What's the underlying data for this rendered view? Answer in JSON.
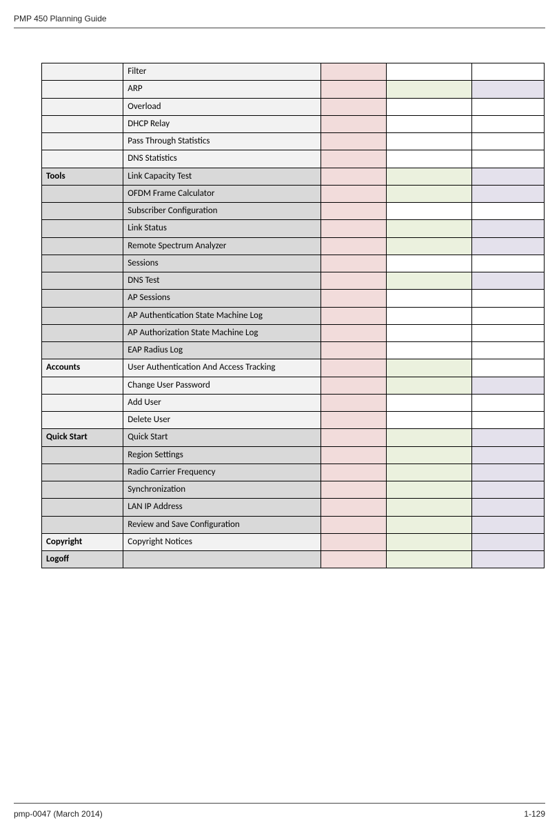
{
  "doc": {
    "header_title": "PMP 450 Planning Guide",
    "footer_left": "pmp-0047 (March 2014)",
    "footer_right": "1-129"
  },
  "colors": {
    "white": "#ffffff",
    "light": "#f2f2f2",
    "grey": "#d9d9d9",
    "pink": "#f2dcdb",
    "green": "#ebf1de",
    "purple": "#e4e1ec"
  },
  "rows": [
    {
      "section": "",
      "sec_bg": "light",
      "sec_bold": false,
      "item": "Filter",
      "item_bg": "light",
      "a": "pink",
      "b": "white",
      "c": "white"
    },
    {
      "section": "",
      "sec_bg": "light",
      "sec_bold": false,
      "item": "ARP",
      "item_bg": "light",
      "a": "pink",
      "b": "green",
      "c": "purple"
    },
    {
      "section": "",
      "sec_bg": "light",
      "sec_bold": false,
      "item": "Overload",
      "item_bg": "light",
      "a": "pink",
      "b": "white",
      "c": "white"
    },
    {
      "section": "",
      "sec_bg": "light",
      "sec_bold": false,
      "item": "DHCP Relay",
      "item_bg": "light",
      "a": "pink",
      "b": "white",
      "c": "white"
    },
    {
      "section": "",
      "sec_bg": "light",
      "sec_bold": false,
      "item": "Pass Through Statistics",
      "item_bg": "light",
      "a": "pink",
      "b": "white",
      "c": "white"
    },
    {
      "section": "",
      "sec_bg": "light",
      "sec_bold": false,
      "item": "DNS Statistics",
      "item_bg": "light",
      "a": "pink",
      "b": "white",
      "c": "white"
    },
    {
      "section": "Tools",
      "sec_bg": "grey",
      "sec_bold": true,
      "item": "Link Capacity Test",
      "item_bg": "grey",
      "a": "pink",
      "b": "green",
      "c": "purple"
    },
    {
      "section": "",
      "sec_bg": "grey",
      "sec_bold": false,
      "item": "OFDM Frame Calculator",
      "item_bg": "grey",
      "a": "pink",
      "b": "green",
      "c": "purple"
    },
    {
      "section": "",
      "sec_bg": "grey",
      "sec_bold": false,
      "item": "Subscriber Configuration",
      "item_bg": "grey",
      "a": "pink",
      "b": "white",
      "c": "white"
    },
    {
      "section": "",
      "sec_bg": "grey",
      "sec_bold": false,
      "item": "Link Status",
      "item_bg": "grey",
      "a": "pink",
      "b": "green",
      "c": "purple"
    },
    {
      "section": "",
      "sec_bg": "grey",
      "sec_bold": false,
      "item": "Remote Spectrum Analyzer",
      "item_bg": "grey",
      "a": "pink",
      "b": "green",
      "c": "purple"
    },
    {
      "section": "",
      "sec_bg": "grey",
      "sec_bold": false,
      "item": "Sessions",
      "item_bg": "grey",
      "a": "pink",
      "b": "white",
      "c": "white"
    },
    {
      "section": "",
      "sec_bg": "grey",
      "sec_bold": false,
      "item": "DNS Test",
      "item_bg": "grey",
      "a": "pink",
      "b": "green",
      "c": "purple"
    },
    {
      "section": "",
      "sec_bg": "grey",
      "sec_bold": false,
      "item": "AP Sessions",
      "item_bg": "grey",
      "a": "pink",
      "b": "white",
      "c": "white"
    },
    {
      "section": "",
      "sec_bg": "grey",
      "sec_bold": false,
      "item": "AP Authentication State Machine Log",
      "item_bg": "grey",
      "a": "pink",
      "b": "white",
      "c": "white"
    },
    {
      "section": "",
      "sec_bg": "grey",
      "sec_bold": false,
      "item": "AP Authorization State Machine Log",
      "item_bg": "grey",
      "a": "pink",
      "b": "white",
      "c": "white"
    },
    {
      "section": "",
      "sec_bg": "grey",
      "sec_bold": false,
      "item": "EAP Radius Log",
      "item_bg": "grey",
      "a": "pink",
      "b": "white",
      "c": "white"
    },
    {
      "section": "Accounts",
      "sec_bg": "light",
      "sec_bold": true,
      "item": "User Authentication And Access Tracking",
      "item_bg": "light",
      "a": "pink",
      "b": "green",
      "c": "white"
    },
    {
      "section": "",
      "sec_bg": "light",
      "sec_bold": false,
      "item": "Change User Password",
      "item_bg": "light",
      "a": "pink",
      "b": "green",
      "c": "purple"
    },
    {
      "section": "",
      "sec_bg": "light",
      "sec_bold": false,
      "item": "Add User",
      "item_bg": "light",
      "a": "pink",
      "b": "white",
      "c": "white"
    },
    {
      "section": "",
      "sec_bg": "light",
      "sec_bold": false,
      "item": "Delete User",
      "item_bg": "light",
      "a": "pink",
      "b": "white",
      "c": "white"
    },
    {
      "section": "Quick Start",
      "sec_bg": "grey",
      "sec_bold": true,
      "item": "Quick Start",
      "item_bg": "grey",
      "a": "pink",
      "b": "green",
      "c": "purple"
    },
    {
      "section": "",
      "sec_bg": "grey",
      "sec_bold": false,
      "item": "Region Settings",
      "item_bg": "grey",
      "a": "pink",
      "b": "green",
      "c": "purple"
    },
    {
      "section": "",
      "sec_bg": "grey",
      "sec_bold": false,
      "item": "Radio Carrier Frequency",
      "item_bg": "grey",
      "a": "pink",
      "b": "green",
      "c": "purple"
    },
    {
      "section": "",
      "sec_bg": "grey",
      "sec_bold": false,
      "item": "Synchronization",
      "item_bg": "grey",
      "a": "pink",
      "b": "green",
      "c": "purple"
    },
    {
      "section": "",
      "sec_bg": "grey",
      "sec_bold": false,
      "item": "LAN IP Address",
      "item_bg": "grey",
      "a": "pink",
      "b": "green",
      "c": "purple"
    },
    {
      "section": "",
      "sec_bg": "grey",
      "sec_bold": false,
      "item": "Review and Save Configuration",
      "item_bg": "grey",
      "a": "pink",
      "b": "green",
      "c": "purple"
    },
    {
      "section": "Copyright",
      "sec_bg": "light",
      "sec_bold": true,
      "item": "Copyright Notices",
      "item_bg": "light",
      "a": "pink",
      "b": "green",
      "c": "purple"
    },
    {
      "section": "Logoff",
      "sec_bg": "grey",
      "sec_bold": true,
      "item": "",
      "item_bg": "grey",
      "a": "pink",
      "b": "green",
      "c": "purple"
    }
  ]
}
